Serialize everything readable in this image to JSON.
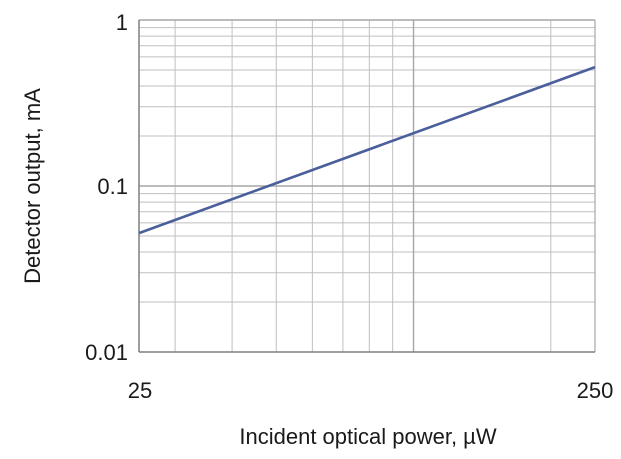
{
  "chart_data": {
    "type": "line",
    "xlabel": "Incident optical power, µW",
    "ylabel": "Detector output, mA",
    "x_scale": "log",
    "y_scale": "log",
    "xlim": [
      25,
      250
    ],
    "ylim": [
      0.01,
      1
    ],
    "x_tick_labels": [
      "25",
      "250"
    ],
    "y_tick_labels": [
      "0.01",
      "0.1",
      "1"
    ],
    "grid": true,
    "legend": "none",
    "series": [
      {
        "x": [
          25,
          250
        ],
        "y": [
          0.052,
          0.52
        ]
      }
    ],
    "colors": {
      "line": "#4a5f9c",
      "grid": "#bfbfbf",
      "axis": "#7f7f7f"
    }
  }
}
